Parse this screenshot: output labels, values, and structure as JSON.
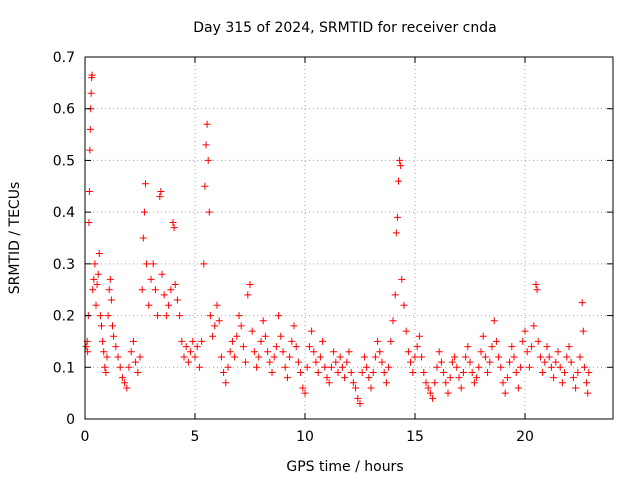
{
  "colors": {
    "marker": "#ff0000",
    "grid": "#a0a0a0",
    "axis": "#000000",
    "background": "#ffffff"
  },
  "chart_data": {
    "type": "scatter",
    "title": "Day 315 of 2024, SRMTID for receiver cnda",
    "xlabel": "GPS time / hours",
    "ylabel": "SRMTID / TECUs",
    "xlim": [
      0,
      24
    ],
    "ylim": [
      0,
      0.7
    ],
    "x_ticks": [
      0,
      5,
      10,
      15,
      20
    ],
    "y_ticks": [
      0,
      0.1,
      0.2,
      0.3,
      0.4,
      0.5,
      0.6,
      0.7
    ],
    "x_tick_labels": [
      "0",
      "5",
      "10",
      "15",
      "20"
    ],
    "y_tick_labels": [
      "0",
      "0.1",
      "0.2",
      "0.3",
      "0.4",
      "0.5",
      "0.6",
      "0.7"
    ],
    "grid": true,
    "marker": "+",
    "series": [
      {
        "name": "SRMTID",
        "points": [
          [
            0.05,
            0.14
          ],
          [
            0.1,
            0.15
          ],
          [
            0.12,
            0.13
          ],
          [
            0.15,
            0.2
          ],
          [
            0.18,
            0.38
          ],
          [
            0.2,
            0.44
          ],
          [
            0.22,
            0.52
          ],
          [
            0.24,
            0.56
          ],
          [
            0.26,
            0.6
          ],
          [
            0.28,
            0.63
          ],
          [
            0.3,
            0.66
          ],
          [
            0.32,
            0.665
          ],
          [
            0.35,
            0.25
          ],
          [
            0.4,
            0.27
          ],
          [
            0.45,
            0.3
          ],
          [
            0.5,
            0.22
          ],
          [
            0.55,
            0.26
          ],
          [
            0.6,
            0.28
          ],
          [
            0.65,
            0.32
          ],
          [
            0.7,
            0.2
          ],
          [
            0.75,
            0.18
          ],
          [
            0.8,
            0.15
          ],
          [
            0.85,
            0.13
          ],
          [
            0.9,
            0.1
          ],
          [
            0.95,
            0.09
          ],
          [
            1.0,
            0.12
          ],
          [
            1.05,
            0.2
          ],
          [
            1.1,
            0.25
          ],
          [
            1.15,
            0.27
          ],
          [
            1.2,
            0.23
          ],
          [
            1.25,
            0.18
          ],
          [
            1.3,
            0.16
          ],
          [
            1.4,
            0.14
          ],
          [
            1.5,
            0.12
          ],
          [
            1.6,
            0.1
          ],
          [
            1.7,
            0.08
          ],
          [
            1.8,
            0.07
          ],
          [
            1.9,
            0.06
          ],
          [
            2.0,
            0.1
          ],
          [
            2.1,
            0.13
          ],
          [
            2.2,
            0.15
          ],
          [
            2.3,
            0.11
          ],
          [
            2.4,
            0.09
          ],
          [
            2.5,
            0.12
          ],
          [
            2.6,
            0.25
          ],
          [
            2.65,
            0.35
          ],
          [
            2.7,
            0.4
          ],
          [
            2.75,
            0.455
          ],
          [
            2.8,
            0.3
          ],
          [
            2.9,
            0.22
          ],
          [
            3.0,
            0.27
          ],
          [
            3.1,
            0.3
          ],
          [
            3.2,
            0.25
          ],
          [
            3.3,
            0.2
          ],
          [
            3.4,
            0.43
          ],
          [
            3.45,
            0.44
          ],
          [
            3.5,
            0.28
          ],
          [
            3.6,
            0.24
          ],
          [
            3.7,
            0.2
          ],
          [
            3.8,
            0.22
          ],
          [
            3.9,
            0.25
          ],
          [
            4.0,
            0.38
          ],
          [
            4.05,
            0.37
          ],
          [
            4.1,
            0.26
          ],
          [
            4.2,
            0.23
          ],
          [
            4.3,
            0.2
          ],
          [
            4.4,
            0.15
          ],
          [
            4.5,
            0.12
          ],
          [
            4.6,
            0.14
          ],
          [
            4.7,
            0.11
          ],
          [
            4.8,
            0.13
          ],
          [
            4.9,
            0.15
          ],
          [
            5.0,
            0.12
          ],
          [
            5.1,
            0.14
          ],
          [
            5.2,
            0.1
          ],
          [
            5.3,
            0.15
          ],
          [
            5.4,
            0.3
          ],
          [
            5.45,
            0.45
          ],
          [
            5.5,
            0.53
          ],
          [
            5.55,
            0.57
          ],
          [
            5.6,
            0.5
          ],
          [
            5.65,
            0.4
          ],
          [
            5.7,
            0.2
          ],
          [
            5.8,
            0.16
          ],
          [
            5.9,
            0.18
          ],
          [
            6.0,
            0.22
          ],
          [
            6.1,
            0.19
          ],
          [
            6.2,
            0.12
          ],
          [
            6.3,
            0.09
          ],
          [
            6.4,
            0.07
          ],
          [
            6.5,
            0.1
          ],
          [
            6.6,
            0.13
          ],
          [
            6.7,
            0.15
          ],
          [
            6.8,
            0.12
          ],
          [
            6.9,
            0.16
          ],
          [
            7.0,
            0.2
          ],
          [
            7.1,
            0.18
          ],
          [
            7.2,
            0.14
          ],
          [
            7.3,
            0.11
          ],
          [
            7.4,
            0.24
          ],
          [
            7.5,
            0.26
          ],
          [
            7.6,
            0.17
          ],
          [
            7.7,
            0.13
          ],
          [
            7.8,
            0.1
          ],
          [
            7.9,
            0.12
          ],
          [
            8.0,
            0.15
          ],
          [
            8.1,
            0.19
          ],
          [
            8.2,
            0.16
          ],
          [
            8.3,
            0.13
          ],
          [
            8.4,
            0.11
          ],
          [
            8.5,
            0.09
          ],
          [
            8.6,
            0.12
          ],
          [
            8.7,
            0.14
          ],
          [
            8.8,
            0.2
          ],
          [
            8.9,
            0.16
          ],
          [
            9.0,
            0.13
          ],
          [
            9.1,
            0.1
          ],
          [
            9.2,
            0.08
          ],
          [
            9.3,
            0.12
          ],
          [
            9.4,
            0.15
          ],
          [
            9.5,
            0.18
          ],
          [
            9.6,
            0.14
          ],
          [
            9.7,
            0.11
          ],
          [
            9.8,
            0.09
          ],
          [
            9.9,
            0.06
          ],
          [
            10.0,
            0.05
          ],
          [
            10.1,
            0.1
          ],
          [
            10.2,
            0.14
          ],
          [
            10.3,
            0.17
          ],
          [
            10.4,
            0.13
          ],
          [
            10.5,
            0.11
          ],
          [
            10.6,
            0.09
          ],
          [
            10.7,
            0.12
          ],
          [
            10.8,
            0.15
          ],
          [
            10.9,
            0.1
          ],
          [
            11.0,
            0.08
          ],
          [
            11.1,
            0.07
          ],
          [
            11.2,
            0.1
          ],
          [
            11.3,
            0.13
          ],
          [
            11.4,
            0.11
          ],
          [
            11.5,
            0.09
          ],
          [
            11.6,
            0.12
          ],
          [
            11.7,
            0.1
          ],
          [
            11.8,
            0.08
          ],
          [
            11.9,
            0.11
          ],
          [
            12.0,
            0.13
          ],
          [
            12.1,
            0.09
          ],
          [
            12.2,
            0.07
          ],
          [
            12.3,
            0.06
          ],
          [
            12.4,
            0.04
          ],
          [
            12.5,
            0.03
          ],
          [
            12.6,
            0.09
          ],
          [
            12.7,
            0.12
          ],
          [
            12.8,
            0.1
          ],
          [
            12.9,
            0.08
          ],
          [
            13.0,
            0.06
          ],
          [
            13.1,
            0.09
          ],
          [
            13.2,
            0.12
          ],
          [
            13.3,
            0.15
          ],
          [
            13.4,
            0.13
          ],
          [
            13.5,
            0.11
          ],
          [
            13.6,
            0.09
          ],
          [
            13.7,
            0.07
          ],
          [
            13.8,
            0.1
          ],
          [
            13.9,
            0.15
          ],
          [
            14.0,
            0.19
          ],
          [
            14.1,
            0.24
          ],
          [
            14.15,
            0.36
          ],
          [
            14.2,
            0.39
          ],
          [
            14.25,
            0.46
          ],
          [
            14.3,
            0.5
          ],
          [
            14.35,
            0.49
          ],
          [
            14.4,
            0.27
          ],
          [
            14.5,
            0.22
          ],
          [
            14.6,
            0.17
          ],
          [
            14.7,
            0.13
          ],
          [
            14.8,
            0.11
          ],
          [
            14.9,
            0.09
          ],
          [
            15.0,
            0.12
          ],
          [
            15.1,
            0.14
          ],
          [
            15.2,
            0.16
          ],
          [
            15.3,
            0.12
          ],
          [
            15.4,
            0.09
          ],
          [
            15.5,
            0.07
          ],
          [
            15.6,
            0.06
          ],
          [
            15.7,
            0.05
          ],
          [
            15.8,
            0.04
          ],
          [
            15.9,
            0.07
          ],
          [
            16.0,
            0.1
          ],
          [
            16.1,
            0.13
          ],
          [
            16.2,
            0.11
          ],
          [
            16.3,
            0.09
          ],
          [
            16.4,
            0.07
          ],
          [
            16.5,
            0.05
          ],
          [
            16.6,
            0.08
          ],
          [
            16.7,
            0.11
          ],
          [
            16.8,
            0.12
          ],
          [
            16.9,
            0.1
          ],
          [
            17.0,
            0.08
          ],
          [
            17.1,
            0.06
          ],
          [
            17.2,
            0.09
          ],
          [
            17.3,
            0.12
          ],
          [
            17.4,
            0.14
          ],
          [
            17.5,
            0.11
          ],
          [
            17.6,
            0.09
          ],
          [
            17.7,
            0.07
          ],
          [
            17.8,
            0.08
          ],
          [
            17.9,
            0.1
          ],
          [
            18.0,
            0.13
          ],
          [
            18.1,
            0.16
          ],
          [
            18.2,
            0.12
          ],
          [
            18.3,
            0.09
          ],
          [
            18.4,
            0.11
          ],
          [
            18.5,
            0.14
          ],
          [
            18.6,
            0.19
          ],
          [
            18.7,
            0.15
          ],
          [
            18.8,
            0.12
          ],
          [
            18.9,
            0.1
          ],
          [
            19.0,
            0.07
          ],
          [
            19.1,
            0.05
          ],
          [
            19.2,
            0.08
          ],
          [
            19.3,
            0.11
          ],
          [
            19.4,
            0.14
          ],
          [
            19.5,
            0.12
          ],
          [
            19.6,
            0.09
          ],
          [
            19.7,
            0.06
          ],
          [
            19.8,
            0.1
          ],
          [
            19.9,
            0.15
          ],
          [
            20.0,
            0.17
          ],
          [
            20.1,
            0.13
          ],
          [
            20.2,
            0.1
          ],
          [
            20.3,
            0.14
          ],
          [
            20.4,
            0.18
          ],
          [
            20.5,
            0.26
          ],
          [
            20.55,
            0.25
          ],
          [
            20.6,
            0.15
          ],
          [
            20.7,
            0.12
          ],
          [
            20.8,
            0.09
          ],
          [
            20.9,
            0.11
          ],
          [
            21.0,
            0.14
          ],
          [
            21.1,
            0.12
          ],
          [
            21.2,
            0.1
          ],
          [
            21.3,
            0.08
          ],
          [
            21.4,
            0.11
          ],
          [
            21.5,
            0.13
          ],
          [
            21.6,
            0.1
          ],
          [
            21.7,
            0.07
          ],
          [
            21.8,
            0.09
          ],
          [
            21.9,
            0.12
          ],
          [
            22.0,
            0.14
          ],
          [
            22.1,
            0.11
          ],
          [
            22.2,
            0.08
          ],
          [
            22.3,
            0.06
          ],
          [
            22.4,
            0.09
          ],
          [
            22.5,
            0.12
          ],
          [
            22.6,
            0.225
          ],
          [
            22.65,
            0.17
          ],
          [
            22.7,
            0.1
          ],
          [
            22.8,
            0.07
          ],
          [
            22.85,
            0.05
          ],
          [
            22.9,
            0.09
          ]
        ]
      }
    ]
  }
}
